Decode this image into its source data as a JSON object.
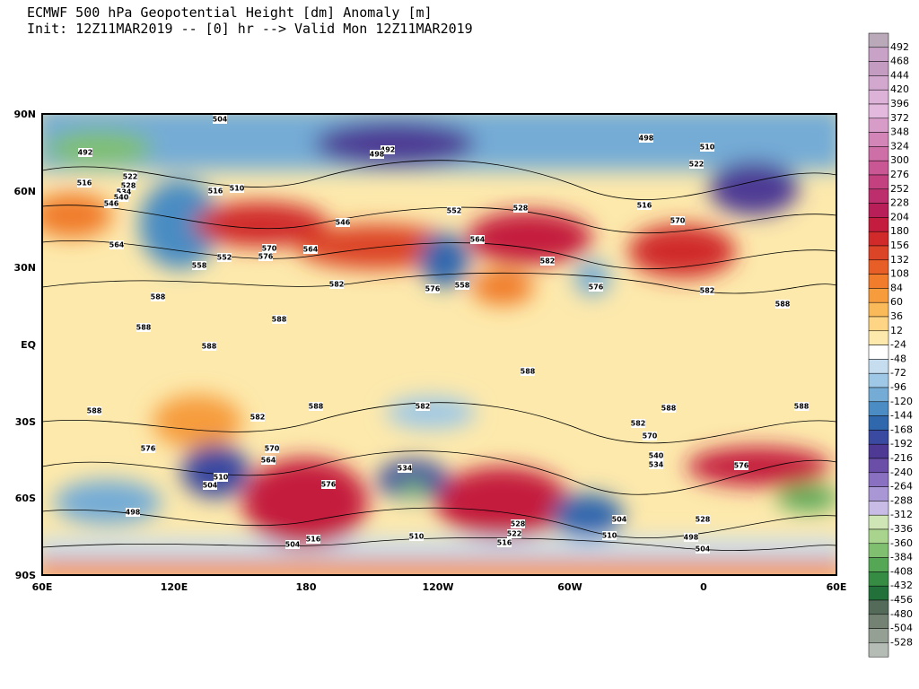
{
  "header": {
    "title": "ECMWF 500 hPa Geopotential Height [dm] Anomaly [m]",
    "subtitle": "Init: 12Z11MAR2019 -- [0] hr --> Valid Mon 12Z11MAR2019"
  },
  "map": {
    "lat_labels": [
      "90N",
      "60N",
      "30N",
      "EQ",
      "30S",
      "60S",
      "90S"
    ],
    "lon_labels": [
      "60E",
      "120E",
      "180",
      "120W",
      "60W",
      "0",
      "60E"
    ],
    "contour_labels": [
      "504",
      "492",
      "498",
      "516",
      "522",
      "528",
      "534",
      "540",
      "546",
      "516",
      "510",
      "564",
      "552",
      "558",
      "570",
      "576",
      "564",
      "582",
      "588",
      "588",
      "588",
      "588",
      "588",
      "582",
      "588",
      "582",
      "588",
      "588",
      "582",
      "576",
      "570",
      "564",
      "510",
      "504",
      "576",
      "534",
      "558",
      "576",
      "582",
      "576",
      "582",
      "588",
      "576",
      "528",
      "498",
      "504",
      "510",
      "498",
      "504",
      "504",
      "516",
      "510",
      "528",
      "522",
      "516",
      "570",
      "540",
      "534",
      "588",
      "492",
      "498",
      "510",
      "522",
      "516",
      "570",
      "528",
      "546",
      "552",
      "564"
    ]
  },
  "colorbar": {
    "labels": [
      "492",
      "468",
      "444",
      "420",
      "396",
      "372",
      "348",
      "324",
      "300",
      "276",
      "252",
      "228",
      "204",
      "180",
      "156",
      "132",
      "108",
      "84",
      "60",
      "36",
      "12",
      "-24",
      "-48",
      "-72",
      "-96",
      "-120",
      "-144",
      "-168",
      "-192",
      "-216",
      "-240",
      "-264",
      "-288",
      "-312",
      "-336",
      "-360",
      "-384",
      "-408",
      "-432",
      "-456",
      "-480",
      "-504",
      "-528"
    ],
    "colors": [
      "#b9a9b9",
      "#c9a3c7",
      "#c49bc1",
      "#d2a8cf",
      "#dcb2d8",
      "#e3b9dd",
      "#d89cc8",
      "#d485b7",
      "#cf6fa7",
      "#c85794",
      "#c3417f",
      "#bd2e6d",
      "#b81e57",
      "#c41c3e",
      "#d02a2a",
      "#dc4427",
      "#e85e27",
      "#f07c2c",
      "#f69c3c",
      "#fbba5a",
      "#fdd584",
      "#fde9ac",
      "#ffffff",
      "#c6dcef",
      "#9ec8e6",
      "#74acd6",
      "#4a8cc3",
      "#3068ae",
      "#3a4aa0",
      "#4e3a94",
      "#6a4ea8",
      "#8a70c0",
      "#a996d4",
      "#c8bce6",
      "#cfe5b5",
      "#a8d48e",
      "#7fbf6f",
      "#56a755",
      "#378c44",
      "#23713a",
      "#556b5a",
      "#738273",
      "#93a093",
      "#b5bcb5"
    ]
  }
}
